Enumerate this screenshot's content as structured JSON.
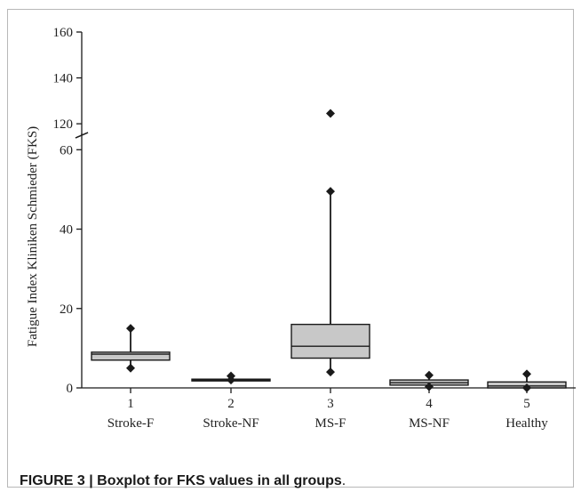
{
  "caption": {
    "label": "FIGURE 3 | Boxplot for FKS values in all groups",
    "trailing": "."
  },
  "chart_data": {
    "type": "boxplot",
    "ylabel": "Fatigue Index Kliniken Schmieder (FKS)",
    "axis_break": {
      "from": 65,
      "to": 115
    },
    "ylim_lower": [
      0,
      65
    ],
    "ylim_upper": [
      115,
      160
    ],
    "yticks_lower": [
      0,
      20,
      40,
      60
    ],
    "yticks_upper": [
      120,
      140,
      160
    ],
    "categories": [
      {
        "number": "1",
        "name": "Stroke-F"
      },
      {
        "number": "2",
        "name": "Stroke-NF"
      },
      {
        "number": "3",
        "name": "MS-F"
      },
      {
        "number": "4",
        "name": "MS-NF"
      },
      {
        "number": "5",
        "name": "Healthy"
      }
    ],
    "boxes": [
      {
        "whisker_low": 5,
        "q1": 7,
        "median": 8.5,
        "q3": 9,
        "whisker_high": 15,
        "outliers": []
      },
      {
        "whisker_low": 2,
        "q1": 2,
        "median": 2,
        "q3": 2.2,
        "whisker_high": 3,
        "outliers": []
      },
      {
        "whisker_low": 4,
        "q1": 7.5,
        "median": 10.5,
        "q3": 16,
        "whisker_high": 49.5,
        "outliers": [
          124.5
        ]
      },
      {
        "whisker_low": 0.3,
        "q1": 0.7,
        "median": 1.3,
        "q3": 2,
        "whisker_high": 3.2,
        "outliers": []
      },
      {
        "whisker_low": 0,
        "q1": 0,
        "median": 0.5,
        "q3": 1.5,
        "whisker_high": 3.5,
        "outliers": []
      }
    ],
    "colors": {
      "box_fill": "#c8c8c8",
      "stroke": "#1a1a1a"
    }
  }
}
